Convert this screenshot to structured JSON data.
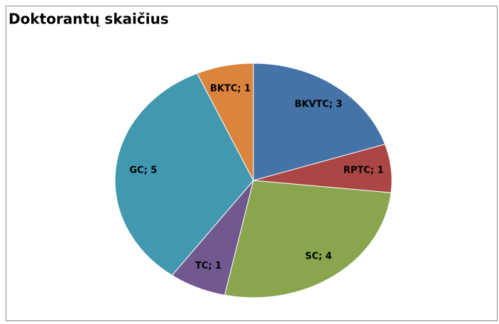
{
  "chart_data": {
    "type": "pie",
    "title": "Doktorantų skaičius",
    "categories": [
      "BKVTC",
      "RPTC",
      "SC",
      "TC",
      "GC",
      "BKTC"
    ],
    "values": [
      3,
      1,
      4,
      1,
      5,
      1
    ],
    "value_labels": [
      "BKVTC; 3",
      "RPTC; 1",
      "SC; 4",
      "TC; 1",
      "GC; 5",
      "BKTC; 1"
    ],
    "colors": [
      "#4572a7",
      "#aa4643",
      "#89a54e",
      "#71588f",
      "#4198af",
      "#db843d"
    ]
  }
}
